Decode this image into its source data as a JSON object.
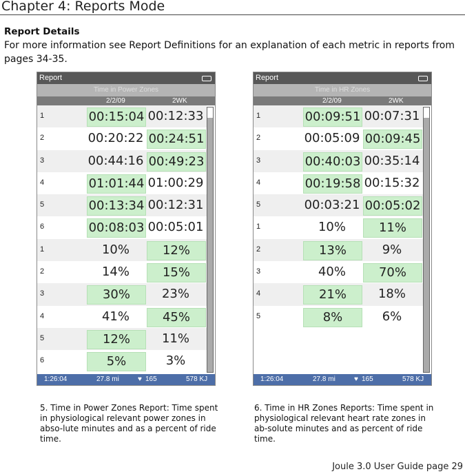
{
  "chapter": "Chapter 4: Reports Mode",
  "heading": "Report Details",
  "intro": "For more information see Report Definitions for an explanation of  each metric in reports from pages 34-35.",
  "devices": [
    {
      "header": "Report",
      "subtitle": "Time in Power Zones",
      "col1": "2/2/09",
      "col2": "2WK",
      "rows": [
        [
          "1",
          "00:15:04",
          "00:12:33",
          1
        ],
        [
          "2",
          "00:20:22",
          "00:24:51",
          2
        ],
        [
          "3",
          "00:44:16",
          "00:49:23",
          2
        ],
        [
          "4",
          "01:01:44",
          "01:00:29",
          1
        ],
        [
          "5",
          "00:13:34",
          "00:12:31",
          1
        ],
        [
          "6",
          "00:08:03",
          "00:05:01",
          1
        ],
        [
          "1",
          "10%",
          "12%",
          2
        ],
        [
          "2",
          "14%",
          "15%",
          2
        ],
        [
          "3",
          "30%",
          "23%",
          1
        ],
        [
          "4",
          "41%",
          "45%",
          2
        ],
        [
          "5",
          "12%",
          "11%",
          1
        ],
        [
          "6",
          "5%",
          "3%",
          1
        ]
      ],
      "footer": {
        "time": "1:26:04",
        "distance": "27.8 mi",
        "hr": "165",
        "energy": "578  KJ"
      }
    },
    {
      "header": "Report",
      "subtitle": "Time in HR Zones",
      "col1": "2/2/09",
      "col2": "2WK",
      "rows": [
        [
          "1",
          "00:09:51",
          "00:07:31",
          1
        ],
        [
          "2",
          "00:05:09",
          "00:09:45",
          2
        ],
        [
          "3",
          "00:40:03",
          "00:35:14",
          1
        ],
        [
          "4",
          "00:19:58",
          "00:15:32",
          1
        ],
        [
          "5",
          "00:03:21",
          "00:05:02",
          2
        ],
        [
          "1",
          "10%",
          "11%",
          2
        ],
        [
          "2",
          "13%",
          "9%",
          1
        ],
        [
          "3",
          "40%",
          "70%",
          2
        ],
        [
          "4",
          "21%",
          "18%",
          1
        ],
        [
          "5",
          "8%",
          "6%",
          1
        ]
      ],
      "footer": {
        "time": "1:26:04",
        "distance": "27.8 mi",
        "hr": "165",
        "energy": "578  KJ"
      }
    }
  ],
  "captions": [
    "5. Time in Power Zones Report: Time spent in physiological relevant power zones in abso-lute minutes and as a percent of ride time.",
    "6. Time in HR Zones Reports: Time spent in physiological relevant heart rate zones in ab-solute minutes and as percent of ride time."
  ],
  "page": "Joule 3.0 User Guide page 29",
  "colors": {
    "highlight": "#ccefcc",
    "footer": "#4d6ea8"
  }
}
